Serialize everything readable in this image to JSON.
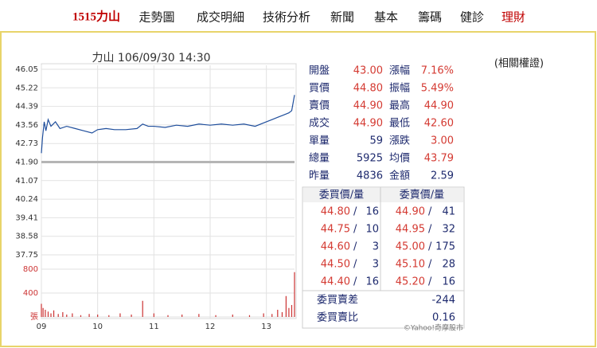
{
  "nav": [
    "1515力山",
    "走勢圖",
    "成交明細",
    "技術分析",
    "新聞",
    "基本",
    "籌碼",
    "健診",
    "理財"
  ],
  "related_link": "(相關權證)",
  "chart_data": [
    {
      "type": "line",
      "title": "力山 106/09/30 14:30",
      "color": "#1f4e9c",
      "x": [
        9.0,
        9.02,
        9.05,
        9.08,
        9.12,
        9.17,
        9.25,
        9.33,
        9.45,
        9.6,
        9.75,
        9.9,
        10.0,
        10.15,
        10.3,
        10.5,
        10.7,
        10.8,
        10.9,
        11.0,
        11.2,
        11.4,
        11.6,
        11.8,
        12.0,
        12.2,
        12.4,
        12.6,
        12.8,
        13.0,
        13.1,
        13.2,
        13.3,
        13.4,
        13.45,
        13.5
      ],
      "values": [
        42.3,
        43.0,
        43.7,
        43.3,
        43.8,
        43.5,
        43.7,
        43.4,
        43.5,
        43.4,
        43.3,
        43.2,
        43.35,
        43.4,
        43.35,
        43.35,
        43.4,
        43.6,
        43.5,
        43.5,
        43.45,
        43.55,
        43.5,
        43.6,
        43.55,
        43.6,
        43.55,
        43.6,
        43.5,
        43.7,
        43.8,
        43.9,
        44.0,
        44.1,
        44.2,
        44.9
      ],
      "baseline": 41.9,
      "baseline_color": "#b5b5b5",
      "xlim": [
        9,
        13.5
      ],
      "ylim": [
        37.75,
        46.05
      ],
      "yticks": [
        46.05,
        45.22,
        44.39,
        43.56,
        42.73,
        {
          "value": 41.9,
          "label": "41.90"
        },
        41.07,
        40.24,
        39.41,
        38.58,
        37.75
      ],
      "grid": true
    },
    {
      "type": "bar",
      "color": "#cc3333",
      "x": [
        9.0,
        9.03,
        9.07,
        9.12,
        9.17,
        9.22,
        9.3,
        9.38,
        9.45,
        9.55,
        9.7,
        9.85,
        10.0,
        10.2,
        10.4,
        10.6,
        10.8,
        11.0,
        11.25,
        11.5,
        11.8,
        12.1,
        12.4,
        12.7,
        12.95,
        13.1,
        13.2,
        13.28,
        13.35,
        13.4,
        13.45,
        13.5
      ],
      "values": [
        220,
        150,
        120,
        90,
        60,
        110,
        50,
        80,
        40,
        60,
        30,
        50,
        40,
        30,
        60,
        40,
        270,
        60,
        30,
        40,
        50,
        30,
        40,
        30,
        60,
        50,
        120,
        80,
        350,
        150,
        200,
        750
      ],
      "xlim": [
        9,
        13.5
      ],
      "ylim": [
        0,
        800
      ],
      "xticks": [
        {
          "value": 9,
          "label": "09"
        },
        10,
        11,
        12,
        13
      ],
      "yticks": [
        {
          "value": 0,
          "label": "張"
        },
        400,
        800
      ],
      "grid": true
    }
  ],
  "quote": {
    "rows": [
      [
        "開盤",
        "43.00",
        "漲幅",
        "7.16%"
      ],
      [
        "買價",
        "44.80",
        "振幅",
        "5.49%"
      ],
      [
        "賣價",
        "44.90",
        "最高",
        "44.90"
      ],
      [
        "成交",
        "44.90",
        "最低",
        "42.60"
      ],
      [
        "單量",
        "59",
        "漲跌",
        "3.00"
      ],
      [
        "總量",
        "5925",
        "均價",
        "43.79"
      ],
      [
        "昨量",
        "4836",
        "金額",
        "2.59"
      ]
    ]
  },
  "order_book": {
    "headers": [
      "委買價/量",
      "委賣價/量"
    ],
    "rows": [
      [
        "44.80",
        "16",
        "44.90",
        "41"
      ],
      [
        "44.75",
        "10",
        "44.95",
        "32"
      ],
      [
        "44.60",
        "3",
        "45.00",
        "175"
      ],
      [
        "44.50",
        "3",
        "45.10",
        "28"
      ],
      [
        "44.40",
        "16",
        "45.20",
        "16"
      ]
    ],
    "summary": [
      [
        "委買賣差",
        "-244"
      ],
      [
        "委買賣比",
        "0.16"
      ]
    ]
  },
  "footer": "©Yahoo!奇摩股市"
}
